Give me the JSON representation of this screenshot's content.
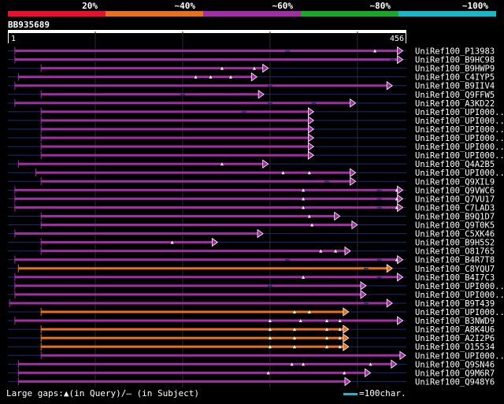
{
  "chart_data": {
    "type": "alignment-overview",
    "query": {
      "name": "BB935689",
      "start": "1",
      "end": "456",
      "length": 456
    },
    "identity_scale": [
      {
        "label": "20%",
        "color": "#e8102c"
      },
      {
        "label": "~40%",
        "color": "#e8701c"
      },
      {
        "label": "~60%",
        "color": "#a12ea6"
      },
      {
        "label": "~80%",
        "color": "#1aa82a"
      },
      {
        "label": "~100%",
        "color": "#18b8c8"
      }
    ],
    "hits": [
      {
        "name": "UniRef100_P13983",
        "color": "purple",
        "start": 8,
        "end": 452,
        "ins": [
          420
        ],
        "del": [
          320
        ]
      },
      {
        "name": "UniRef100_B9HC98",
        "color": "purple",
        "start": 8,
        "end": 452,
        "ins": [],
        "del": [
          440
        ]
      },
      {
        "name": "UniRef100_B9HWP9",
        "color": "purple",
        "start": 38,
        "end": 298,
        "ins": [
          245,
          282
        ],
        "del": []
      },
      {
        "name": "UniRef100_C4IYP5",
        "color": "purple",
        "start": 12,
        "end": 285,
        "ins": [
          215,
          232,
          255
        ],
        "del": []
      },
      {
        "name": "UniRef100_B9IIV4",
        "color": "purple",
        "start": 8,
        "end": 440,
        "ins": [],
        "del": [
          300
        ]
      },
      {
        "name": "UniRef100_Q9FFW5",
        "color": "purple",
        "start": 38,
        "end": 293,
        "ins": [],
        "del": [
          200
        ]
      },
      {
        "name": "UniRef100_A3KD22",
        "color": "purple",
        "start": 8,
        "end": 398,
        "ins": [],
        "del": [
          300,
          350
        ]
      },
      {
        "name": "UniRef100_UPI000..",
        "color": "purple",
        "start": 38,
        "end": 350,
        "ins": [],
        "del": [
          270
        ]
      },
      {
        "name": "UniRef100_UPI000..",
        "color": "purple",
        "start": 38,
        "end": 350,
        "ins": [],
        "del": []
      },
      {
        "name": "UniRef100_UPI000..",
        "color": "purple",
        "start": 38,
        "end": 350,
        "ins": [],
        "del": []
      },
      {
        "name": "UniRef100_UPI000..",
        "color": "purple",
        "start": 38,
        "end": 350,
        "ins": [],
        "del": []
      },
      {
        "name": "UniRef100_UPI000..",
        "color": "purple",
        "start": 38,
        "end": 350,
        "ins": [],
        "del": []
      },
      {
        "name": "UniRef100_UPI000..",
        "color": "purple",
        "start": 38,
        "end": 350,
        "ins": [],
        "del": []
      },
      {
        "name": "UniRef100_Q4A2B5",
        "color": "purple",
        "start": 12,
        "end": 298,
        "ins": [
          245
        ],
        "del": []
      },
      {
        "name": "UniRef100_UPI000..",
        "color": "purple",
        "start": 32,
        "end": 398,
        "ins": [
          315,
          345
        ],
        "del": []
      },
      {
        "name": "UniRef100_Q9XIL9",
        "color": "purple",
        "start": 38,
        "end": 398,
        "ins": [],
        "del": [
          365
        ]
      },
      {
        "name": "UniRef100_Q9VWC6",
        "color": "purple",
        "start": 8,
        "end": 452,
        "ins": [
          338,
          445
        ],
        "del": [
          425
        ]
      },
      {
        "name": "UniRef100_Q7VU17",
        "color": "purple",
        "start": 8,
        "end": 452,
        "ins": [
          338,
          445
        ],
        "del": [
          425
        ]
      },
      {
        "name": "UniRef100_C7LAD3",
        "color": "purple",
        "start": 8,
        "end": 452,
        "ins": [
          338,
          445
        ],
        "del": [
          425
        ]
      },
      {
        "name": "UniRef100_B9Q1D7",
        "color": "purple",
        "start": 38,
        "end": 380,
        "ins": [
          345
        ],
        "del": []
      },
      {
        "name": "UniRef100_Q9T0K5",
        "color": "purple",
        "start": 38,
        "end": 400,
        "ins": [
          348
        ],
        "del": []
      },
      {
        "name": "UniRef100_C5XK46",
        "color": "purple",
        "start": 8,
        "end": 292,
        "ins": [],
        "del": []
      },
      {
        "name": "UniRef100_B9H5S2",
        "color": "purple",
        "start": 38,
        "end": 240,
        "ins": [
          188
        ],
        "del": []
      },
      {
        "name": "UniRef100_O81765",
        "color": "purple",
        "start": 38,
        "end": 392,
        "ins": [
          358,
          375
        ],
        "del": []
      },
      {
        "name": "UniRef100_B4R7T8",
        "color": "purple",
        "start": 8,
        "end": 452,
        "ins": [
          445
        ],
        "del": [
          320,
          425
        ]
      },
      {
        "name": "UniRef100_C8YQU7",
        "color": "orange",
        "start": 12,
        "end": 440,
        "ins": [],
        "del": [
          410
        ]
      },
      {
        "name": "UniRef100_B4I7C3",
        "color": "purple",
        "start": 8,
        "end": 452,
        "ins": [
          338
        ],
        "del": [
          425
        ]
      },
      {
        "name": "UniRef100_UPI000..",
        "color": "purple",
        "start": 8,
        "end": 410,
        "ins": [],
        "del": [
          300
        ]
      },
      {
        "name": "UniRef100_UPI000..",
        "color": "purple",
        "start": 8,
        "end": 410,
        "ins": [],
        "del": []
      },
      {
        "name": "UniRef100_B9T439",
        "color": "purple",
        "start": 2,
        "end": 440,
        "ins": [],
        "del": [
          410
        ]
      },
      {
        "name": "UniRef100_UPI000..",
        "color": "orange",
        "start": 38,
        "end": 390,
        "ins": [
          328,
          345
        ],
        "del": []
      },
      {
        "name": "UniRef100_B3NWD9",
        "color": "purple",
        "start": 8,
        "end": 452,
        "ins": [
          300,
          335,
          365,
          380
        ],
        "del": []
      },
      {
        "name": "UniRef100_A8K4U6",
        "color": "orange",
        "start": 38,
        "end": 390,
        "ins": [
          300,
          328,
          365,
          380
        ],
        "del": []
      },
      {
        "name": "UniRef100_A2I2P6",
        "color": "orange",
        "start": 38,
        "end": 390,
        "ins": [
          300,
          328,
          365,
          380
        ],
        "del": []
      },
      {
        "name": "UniRef100_O15534",
        "color": "orange",
        "start": 38,
        "end": 390,
        "ins": [
          300,
          328,
          365,
          380
        ],
        "del": []
      },
      {
        "name": "UniRef100_UPI000..",
        "color": "purple",
        "start": 38,
        "end": 455,
        "ins": [],
        "del": []
      },
      {
        "name": "UniRef100_Q9SN46",
        "color": "purple",
        "start": 12,
        "end": 445,
        "ins": [
          325,
          338,
          415
        ],
        "del": []
      },
      {
        "name": "UniRef100_Q9M6R7",
        "color": "purple",
        "start": 12,
        "end": 415,
        "ins": [
          298,
          385
        ],
        "del": []
      },
      {
        "name": "UniRef100_Q948Y6",
        "color": "purple",
        "start": 12,
        "end": 392,
        "ins": [],
        "del": []
      }
    ],
    "gridlines": [
      100,
      200,
      300,
      400
    ]
  },
  "legend": {
    "gaps_text": "Large gaps:▲(in Query)/– (in Subject)",
    "scale_text": "=100char."
  }
}
